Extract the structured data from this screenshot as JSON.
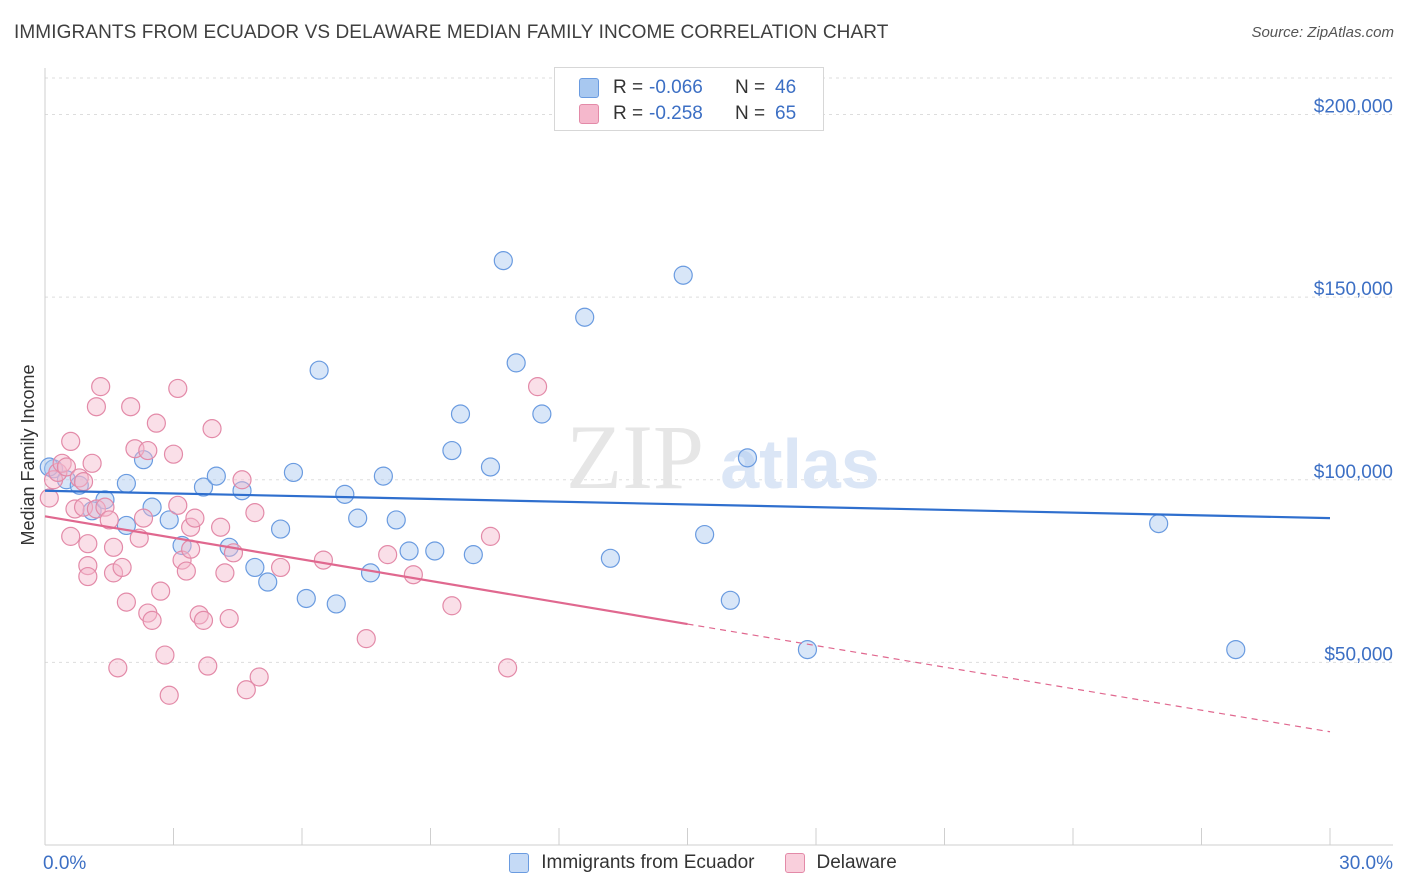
{
  "header": {
    "title": "IMMIGRANTS FROM ECUADOR VS DELAWARE MEDIAN FAMILY INCOME CORRELATION CHART",
    "source": "Source: ZipAtlas.com"
  },
  "watermark": {
    "zip": "ZIP",
    "atlas": "atlas"
  },
  "legend": {
    "rows": [
      {
        "r_label": "R =",
        "r_value": "-0.066",
        "n_label": "N =",
        "n_value": "46",
        "color": "#a8c8f0",
        "border": "#6a9be0"
      },
      {
        "r_label": "R =",
        "r_value": "-0.258",
        "n_label": "N =",
        "n_value": "65",
        "color": "#f5b8cc",
        "border": "#e38aa8"
      }
    ]
  },
  "bottom_legend": [
    {
      "label": "Immigrants from Ecuador",
      "color": "#c5daf6",
      "border": "#6a9be0"
    },
    {
      "label": "Delaware",
      "color": "#f9cfdc",
      "border": "#e38aa8"
    }
  ],
  "chart_data": {
    "type": "scatter",
    "title": "IMMIGRANTS FROM ECUADOR VS DELAWARE MEDIAN FAMILY INCOME CORRELATION CHART",
    "xlabel": "",
    "ylabel": "Median Family Income",
    "xlim": [
      0,
      30
    ],
    "ylim": [
      0,
      210000
    ],
    "x_tick_labels": [
      "0.0%",
      "30.0%"
    ],
    "y_ticks": [
      50000,
      100000,
      150000,
      200000
    ],
    "y_tick_labels": [
      "$50,000",
      "$100,000",
      "$150,000",
      "$200,000"
    ],
    "grid": true,
    "series": [
      {
        "name": "Immigrants from Ecuador",
        "color": "#6a9be0",
        "fill": "#a8c8f0",
        "trend": {
          "x": [
            0,
            30
          ],
          "y": [
            97000,
            89500
          ],
          "color": "#2f6fce"
        },
        "points": [
          [
            0.2,
            103000
          ],
          [
            0.5,
            100000
          ],
          [
            0.8,
            98500
          ],
          [
            1.1,
            91500
          ],
          [
            1.4,
            94500
          ],
          [
            1.9,
            87500
          ],
          [
            1.9,
            99000
          ],
          [
            2.3,
            105500
          ],
          [
            2.5,
            92500
          ],
          [
            2.9,
            89000
          ],
          [
            3.2,
            82000
          ],
          [
            3.7,
            98000
          ],
          [
            4.0,
            101000
          ],
          [
            4.3,
            81500
          ],
          [
            4.6,
            97000
          ],
          [
            4.9,
            76000
          ],
          [
            5.2,
            72000
          ],
          [
            5.5,
            86500
          ],
          [
            5.8,
            102000
          ],
          [
            6.1,
            67500
          ],
          [
            6.4,
            130000
          ],
          [
            6.8,
            66000
          ],
          [
            7.0,
            96000
          ],
          [
            7.3,
            89500
          ],
          [
            7.6,
            74500
          ],
          [
            7.9,
            101000
          ],
          [
            8.2,
            89000
          ],
          [
            8.5,
            80500
          ],
          [
            9.1,
            80500
          ],
          [
            9.5,
            108000
          ],
          [
            9.7,
            118000
          ],
          [
            10.0,
            79500
          ],
          [
            10.4,
            103500
          ],
          [
            10.7,
            160000
          ],
          [
            11.0,
            132000
          ],
          [
            11.6,
            118000
          ],
          [
            12.6,
            144500
          ],
          [
            13.2,
            78500
          ],
          [
            14.9,
            156000
          ],
          [
            15.4,
            85000
          ],
          [
            16.0,
            67000
          ],
          [
            16.4,
            106000
          ],
          [
            17.8,
            53500
          ],
          [
            26.0,
            88000
          ],
          [
            27.8,
            53500
          ],
          [
            0.1,
            103500
          ]
        ]
      },
      {
        "name": "Delaware",
        "color": "#e38aa8",
        "fill": "#f5b8cc",
        "trend": {
          "x": [
            0,
            15
          ],
          "y": [
            90000,
            60500
          ],
          "dashed_to": {
            "x": 30,
            "y": 31000
          },
          "color": "#e0688f"
        },
        "points": [
          [
            0.1,
            95000
          ],
          [
            0.2,
            100000
          ],
          [
            0.3,
            102000
          ],
          [
            0.4,
            104500
          ],
          [
            0.5,
            103500
          ],
          [
            0.6,
            110500
          ],
          [
            0.6,
            84500
          ],
          [
            0.7,
            92000
          ],
          [
            0.8,
            100500
          ],
          [
            0.9,
            92500
          ],
          [
            1.0,
            76500
          ],
          [
            1.0,
            82500
          ],
          [
            1.0,
            73500
          ],
          [
            1.1,
            104500
          ],
          [
            1.2,
            120000
          ],
          [
            1.2,
            92000
          ],
          [
            1.3,
            125500
          ],
          [
            1.4,
            92500
          ],
          [
            1.5,
            89000
          ],
          [
            1.6,
            74500
          ],
          [
            1.6,
            81500
          ],
          [
            1.7,
            48500
          ],
          [
            1.8,
            76000
          ],
          [
            1.9,
            66500
          ],
          [
            2.0,
            120000
          ],
          [
            2.1,
            108500
          ],
          [
            2.2,
            84000
          ],
          [
            2.3,
            89500
          ],
          [
            2.4,
            63500
          ],
          [
            2.5,
            61500
          ],
          [
            2.6,
            115500
          ],
          [
            2.7,
            69500
          ],
          [
            2.8,
            52000
          ],
          [
            2.9,
            41000
          ],
          [
            3.0,
            107000
          ],
          [
            3.1,
            93000
          ],
          [
            3.1,
            125000
          ],
          [
            3.2,
            78000
          ],
          [
            3.3,
            75000
          ],
          [
            3.4,
            87000
          ],
          [
            3.5,
            89500
          ],
          [
            3.6,
            63000
          ],
          [
            3.7,
            61500
          ],
          [
            3.8,
            49000
          ],
          [
            3.9,
            114000
          ],
          [
            4.1,
            87000
          ],
          [
            4.2,
            74500
          ],
          [
            4.3,
            62000
          ],
          [
            4.4,
            80000
          ],
          [
            4.6,
            100000
          ],
          [
            4.7,
            42500
          ],
          [
            4.9,
            91000
          ],
          [
            5.0,
            46000
          ],
          [
            5.5,
            76000
          ],
          [
            6.5,
            78000
          ],
          [
            7.5,
            56500
          ],
          [
            8.0,
            79500
          ],
          [
            8.6,
            74000
          ],
          [
            9.5,
            65500
          ],
          [
            10.4,
            84500
          ],
          [
            10.8,
            48500
          ],
          [
            11.5,
            125500
          ],
          [
            0.9,
            99500
          ],
          [
            2.4,
            108000
          ],
          [
            3.4,
            81000
          ]
        ]
      }
    ]
  }
}
